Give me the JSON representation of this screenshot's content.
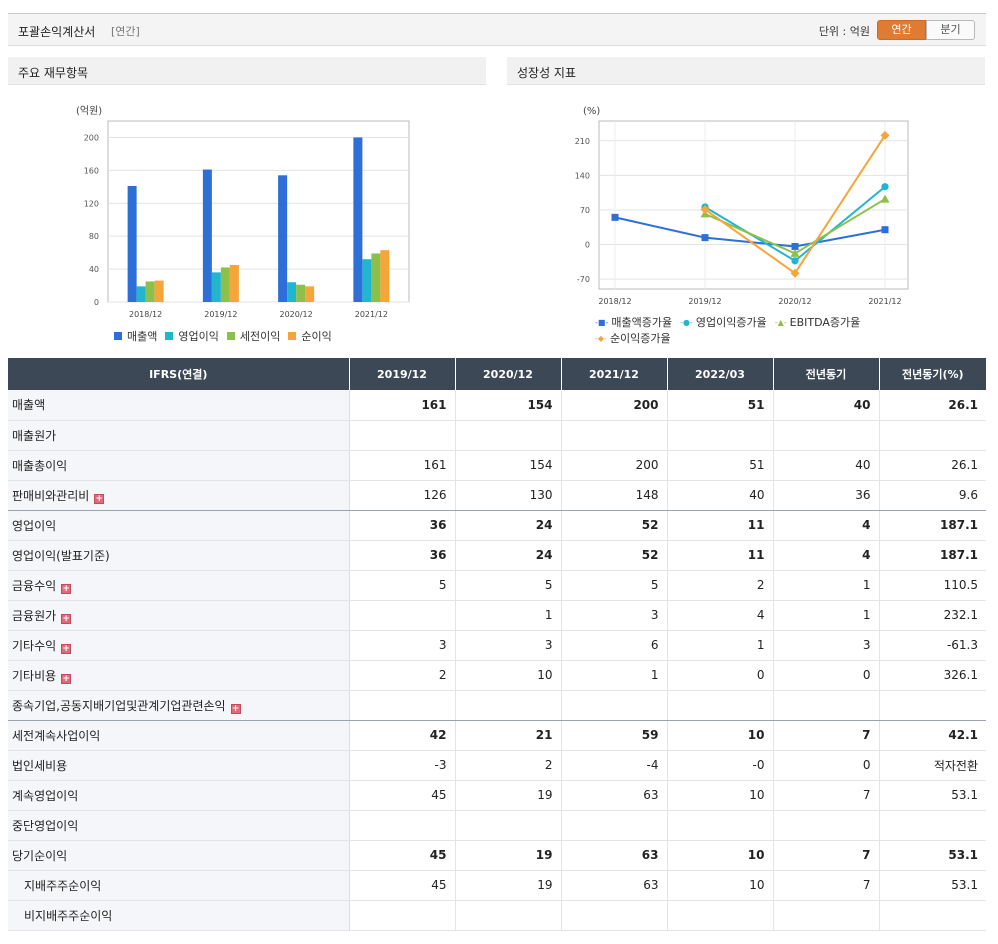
{
  "header": {
    "title": "포괄손익계산서",
    "sub": "[연간]",
    "unit": "단위 : 억원",
    "toggle_annual": "연간",
    "toggle_quarter": "분기"
  },
  "left_panel": {
    "title": "주요 재무항목"
  },
  "right_panel": {
    "title": "성장성 지표"
  },
  "chart_data": [
    {
      "type": "bar",
      "ylabel": "(억원)",
      "categories": [
        "2018/12",
        "2019/12",
        "2020/12",
        "2021/12"
      ],
      "ylim": [
        0,
        220
      ],
      "yticks": [
        0,
        40,
        80,
        120,
        160,
        200
      ],
      "grid": true,
      "legend": "bottom",
      "series": [
        {
          "name": "매출액",
          "color": "#2d6fd9",
          "values": [
            141,
            161,
            154,
            200
          ]
        },
        {
          "name": "영업이익",
          "color": "#21b5d0",
          "values": [
            19,
            36,
            24,
            52
          ]
        },
        {
          "name": "세전이익",
          "color": "#8cc04a",
          "values": [
            25,
            42,
            21,
            59
          ]
        },
        {
          "name": "순이익",
          "color": "#f5a53a",
          "values": [
            26,
            45,
            19,
            63
          ]
        }
      ]
    },
    {
      "type": "line",
      "ylabel": "(%)",
      "categories": [
        "2018/12",
        "2019/12",
        "2020/12",
        "2021/12"
      ],
      "ylim": [
        -90,
        250
      ],
      "yticks": [
        -70,
        0,
        70,
        140,
        210
      ],
      "grid": true,
      "legend": "bottom",
      "series": [
        {
          "name": "매출액증가율",
          "color": "#2d6fd9",
          "marker": "square",
          "values": [
            55,
            14,
            -4,
            30
          ]
        },
        {
          "name": "영업이익증가율",
          "color": "#21b5d0",
          "marker": "circle",
          "values": [
            null,
            76,
            -33,
            117
          ]
        },
        {
          "name": "EBITDA증가율",
          "color": "#8cc04a",
          "marker": "triangle",
          "values": [
            null,
            62,
            -18,
            92
          ]
        },
        {
          "name": "순이익증가율",
          "color": "#f5a53a",
          "marker": "diamond",
          "values": [
            null,
            71,
            -58,
            221
          ]
        }
      ]
    }
  ],
  "table": {
    "headers": [
      "IFRS(연결)",
      "2019/12",
      "2020/12",
      "2021/12",
      "2022/03",
      "전년동기",
      "전년동기(%)"
    ],
    "rows": [
      {
        "label": "매출액",
        "bold": true,
        "sep": false,
        "expand": false,
        "indent": false,
        "values": [
          "161",
          "154",
          "200",
          "51",
          "40",
          "26.1"
        ]
      },
      {
        "label": "매출원가",
        "bold": false,
        "sep": false,
        "expand": false,
        "indent": false,
        "values": [
          "",
          "",
          "",
          "",
          "",
          ""
        ]
      },
      {
        "label": "매출총이익",
        "bold": false,
        "sep": false,
        "expand": false,
        "indent": false,
        "values": [
          "161",
          "154",
          "200",
          "51",
          "40",
          "26.1"
        ]
      },
      {
        "label": "판매비와관리비",
        "bold": false,
        "sep": true,
        "expand": true,
        "indent": false,
        "values": [
          "126",
          "130",
          "148",
          "40",
          "36",
          "9.6"
        ]
      },
      {
        "label": "영업이익",
        "bold": true,
        "sep": false,
        "expand": false,
        "indent": false,
        "values": [
          "36",
          "24",
          "52",
          "11",
          "4",
          "187.1"
        ]
      },
      {
        "label": "영업이익(발표기준)",
        "bold": true,
        "sep": false,
        "expand": false,
        "indent": false,
        "values": [
          "36",
          "24",
          "52",
          "11",
          "4",
          "187.1"
        ]
      },
      {
        "label": "금융수익",
        "bold": false,
        "sep": false,
        "expand": true,
        "indent": false,
        "values": [
          "5",
          "5",
          "5",
          "2",
          "1",
          "110.5"
        ]
      },
      {
        "label": "금융원가",
        "bold": false,
        "sep": false,
        "expand": true,
        "indent": false,
        "values": [
          "",
          "1",
          "3",
          "4",
          "1",
          "232.1"
        ]
      },
      {
        "label": "기타수익",
        "bold": false,
        "sep": false,
        "expand": true,
        "indent": false,
        "values": [
          "3",
          "3",
          "6",
          "1",
          "3",
          "-61.3"
        ]
      },
      {
        "label": "기타비용",
        "bold": false,
        "sep": false,
        "expand": true,
        "indent": false,
        "values": [
          "2",
          "10",
          "1",
          "0",
          "0",
          "326.1"
        ]
      },
      {
        "label": "종속기업,공동지배기업및관계기업관련손익",
        "bold": false,
        "sep": true,
        "expand": true,
        "indent": false,
        "values": [
          "",
          "",
          "",
          "",
          "",
          ""
        ]
      },
      {
        "label": "세전계속사업이익",
        "bold": true,
        "sep": false,
        "expand": false,
        "indent": false,
        "values": [
          "42",
          "21",
          "59",
          "10",
          "7",
          "42.1"
        ]
      },
      {
        "label": "법인세비용",
        "bold": false,
        "sep": false,
        "expand": false,
        "indent": false,
        "values": [
          "-3",
          "2",
          "-4",
          "-0",
          "0",
          "적자전환"
        ]
      },
      {
        "label": "계속영업이익",
        "bold": false,
        "sep": false,
        "expand": false,
        "indent": false,
        "values": [
          "45",
          "19",
          "63",
          "10",
          "7",
          "53.1"
        ]
      },
      {
        "label": "중단영업이익",
        "bold": false,
        "sep": false,
        "expand": false,
        "indent": false,
        "values": [
          "",
          "",
          "",
          "",
          "",
          ""
        ]
      },
      {
        "label": "당기순이익",
        "bold": true,
        "sep": false,
        "expand": false,
        "indent": false,
        "values": [
          "45",
          "19",
          "63",
          "10",
          "7",
          "53.1"
        ]
      },
      {
        "label": "지배주주순이익",
        "bold": false,
        "sep": false,
        "expand": false,
        "indent": true,
        "values": [
          "45",
          "19",
          "63",
          "10",
          "7",
          "53.1"
        ]
      },
      {
        "label": "비지배주주순이익",
        "bold": false,
        "sep": false,
        "expand": false,
        "indent": true,
        "values": [
          "",
          "",
          "",
          "",
          "",
          ""
        ]
      }
    ]
  }
}
